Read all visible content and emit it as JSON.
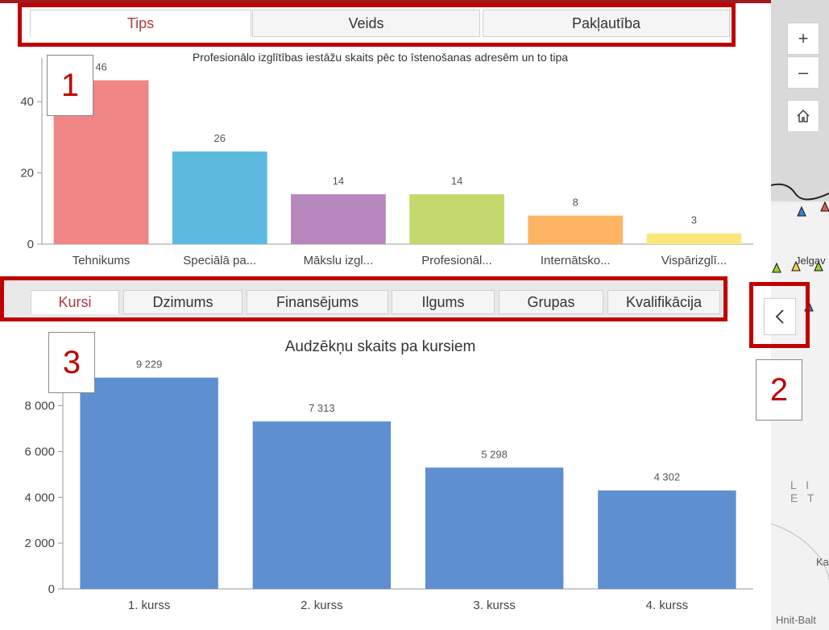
{
  "tabs_top": [
    {
      "label": "Tips",
      "active": true
    },
    {
      "label": "Veids",
      "active": false
    },
    {
      "label": "Pakļautība",
      "active": false
    }
  ],
  "tabs_bottom": [
    {
      "label": "Kursi",
      "active": true
    },
    {
      "label": "Dzimums",
      "active": false
    },
    {
      "label": "Finansējums",
      "active": false
    },
    {
      "label": "Ilgums",
      "active": false
    },
    {
      "label": "Grupas",
      "active": false
    },
    {
      "label": "Kvalifikācija",
      "active": false
    }
  ],
  "callouts": [
    "1",
    "2",
    "3"
  ],
  "map": {
    "zoom_in": "+",
    "zoom_out": "–",
    "home_icon": "home-icon",
    "labels": [
      "Jelgav",
      "L I E T",
      "Ka",
      "Hnit-Balt"
    ]
  },
  "colors": {
    "accent": "#b03a3a",
    "highlight": "#c00000",
    "bar_blue": "#5e8fd1"
  },
  "chart_data": [
    {
      "type": "bar",
      "title": "Profesionālo izglītības iestāžu skaits pēc to īstenošanas adresēm un to tipa",
      "categories": [
        "Tehnikums",
        "Speciālā pa...",
        "Mākslu izgl...",
        "Profesionāl...",
        "Internātsko...",
        "Vispārizglī..."
      ],
      "values": [
        46,
        26,
        14,
        14,
        8,
        3
      ],
      "data_labels": [
        "46",
        "26",
        "14",
        "14",
        "8",
        "3"
      ],
      "colors": [
        "#f08585",
        "#5bbade",
        "#b686bd",
        "#c3d96e",
        "#fdb462",
        "#fde77a"
      ],
      "yticks": [
        "0",
        "20",
        "40"
      ],
      "ylim": [
        0,
        50
      ],
      "grid": false,
      "xlabel": "",
      "ylabel": ""
    },
    {
      "type": "bar",
      "title": "Audzēkņu skaits pa kursiem",
      "categories": [
        "1. kurss",
        "2. kurss",
        "3. kurss",
        "4. kurss"
      ],
      "values": [
        9229,
        7313,
        5298,
        4302
      ],
      "data_labels": [
        "9 229",
        "7 313",
        "5 298",
        "4 302"
      ],
      "colors": [
        "#5e8fd1",
        "#5e8fd1",
        "#5e8fd1",
        "#5e8fd1"
      ],
      "yticks": [
        "0",
        "2 000",
        "4 000",
        "6 000",
        "8 000"
      ],
      "ylim": [
        0,
        9500
      ],
      "grid": false,
      "xlabel": "",
      "ylabel": ""
    }
  ]
}
